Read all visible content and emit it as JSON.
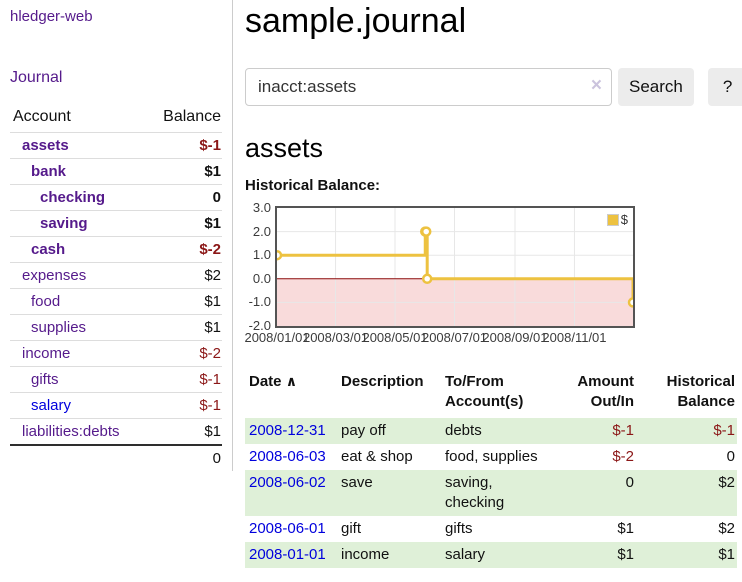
{
  "sidebar": {
    "brand": "hledger-web",
    "journal_link": "Journal",
    "accounts_table": {
      "headers": {
        "account": "Account",
        "balance": "Balance"
      },
      "rows": [
        {
          "name": "assets",
          "balance": "$-1",
          "level": 0,
          "bold": true,
          "negative": true,
          "unvisited": false
        },
        {
          "name": "bank",
          "balance": "$1",
          "level": 1,
          "bold": true,
          "negative": false,
          "unvisited": false
        },
        {
          "name": "checking",
          "balance": "0",
          "level": 2,
          "bold": true,
          "negative": false,
          "unvisited": false
        },
        {
          "name": "saving",
          "balance": "$1",
          "level": 2,
          "bold": true,
          "negative": false,
          "unvisited": false
        },
        {
          "name": "cash",
          "balance": "$-2",
          "level": 1,
          "bold": true,
          "negative": true,
          "unvisited": false
        },
        {
          "name": "expenses",
          "balance": "$2",
          "level": 0,
          "bold": false,
          "negative": false,
          "unvisited": false
        },
        {
          "name": "food",
          "balance": "$1",
          "level": 1,
          "bold": false,
          "negative": false,
          "unvisited": false
        },
        {
          "name": "supplies",
          "balance": "$1",
          "level": 1,
          "bold": false,
          "negative": false,
          "unvisited": false
        },
        {
          "name": "income",
          "balance": "$-2",
          "level": 0,
          "bold": false,
          "negative": true,
          "unvisited": false
        },
        {
          "name": "gifts",
          "balance": "$-1",
          "level": 1,
          "bold": false,
          "negative": true,
          "unvisited": false
        },
        {
          "name": "salary",
          "balance": "$-1",
          "level": 1,
          "bold": false,
          "negative": true,
          "unvisited": true
        },
        {
          "name": "liabilities:debts",
          "balance": "$1",
          "level": 0,
          "bold": false,
          "negative": false,
          "unvisited": false
        }
      ],
      "total": "0"
    }
  },
  "header": {
    "title": "sample.journal"
  },
  "search": {
    "value": "inacct:assets",
    "clear_icon": "×",
    "search_label": "Search",
    "help_label": "?"
  },
  "account_page": {
    "title": "assets",
    "chart_label": "Historical Balance:"
  },
  "chart_data": {
    "type": "line",
    "step": true,
    "title": "Historical Balance",
    "series": [
      {
        "name": "$",
        "color": "#edc240"
      }
    ],
    "points": [
      {
        "date": "2008-01-01",
        "value": 1
      },
      {
        "date": "2008-06-01",
        "value": 2
      },
      {
        "date": "2008-06-02",
        "value": 2
      },
      {
        "date": "2008-06-03",
        "value": 0
      },
      {
        "date": "2008-12-31",
        "value": -1
      }
    ],
    "x_range": [
      "2008-01-01",
      "2008-12-31"
    ],
    "ylim": [
      -2,
      3
    ],
    "y_ticks": [
      "3.0",
      "2.0",
      "1.0",
      "0.0",
      "-1.0",
      "-2.0"
    ],
    "x_ticks": [
      {
        "label": "2008/01/01",
        "date": "2008-01-01"
      },
      {
        "label": "2008/03/01",
        "date": "2008-03-01"
      },
      {
        "label": "2008/05/01",
        "date": "2008-05-01"
      },
      {
        "label": "2008/07/01",
        "date": "2008-07-01"
      },
      {
        "label": "2008/09/01",
        "date": "2008-09-01"
      },
      {
        "label": "2008/11/01",
        "date": "2008-11-01"
      }
    ],
    "legend_position": "top-right",
    "grid": true,
    "gridline_color": "#e7e7e7",
    "negative_region_fill": "#f9dbdb",
    "zero_line_color": "#8c0a0a",
    "border_color": "#545454"
  },
  "register_table": {
    "headers": {
      "date": "Date",
      "sort_icon": "∧",
      "description": "Description",
      "accounts": "To/From Account(s)",
      "amount": "Amount Out/In",
      "balance": "Historical Balance"
    },
    "rows": [
      {
        "date": "2008-12-31",
        "description": "pay off",
        "accounts": "debts",
        "amount": "$-1",
        "balance": "$-1"
      },
      {
        "date": "2008-06-03",
        "description": "eat & shop",
        "accounts": "food, supplies",
        "amount": "$-2",
        "balance": "0"
      },
      {
        "date": "2008-06-02",
        "description": "save",
        "accounts": "saving, checking",
        "amount": "0",
        "balance": "$2"
      },
      {
        "date": "2008-06-01",
        "description": "gift",
        "accounts": "gifts",
        "amount": "$1",
        "balance": "$2"
      },
      {
        "date": "2008-01-01",
        "description": "income",
        "accounts": "salary",
        "amount": "$1",
        "balance": "$1"
      }
    ]
  },
  "colors": {
    "link_purple": "#551a8b",
    "link_blue": "#0000dd",
    "negative_red": "#8b1717",
    "row_green": "#dff0d8",
    "button_gray": "#ececec",
    "series_gold": "#edc240"
  }
}
